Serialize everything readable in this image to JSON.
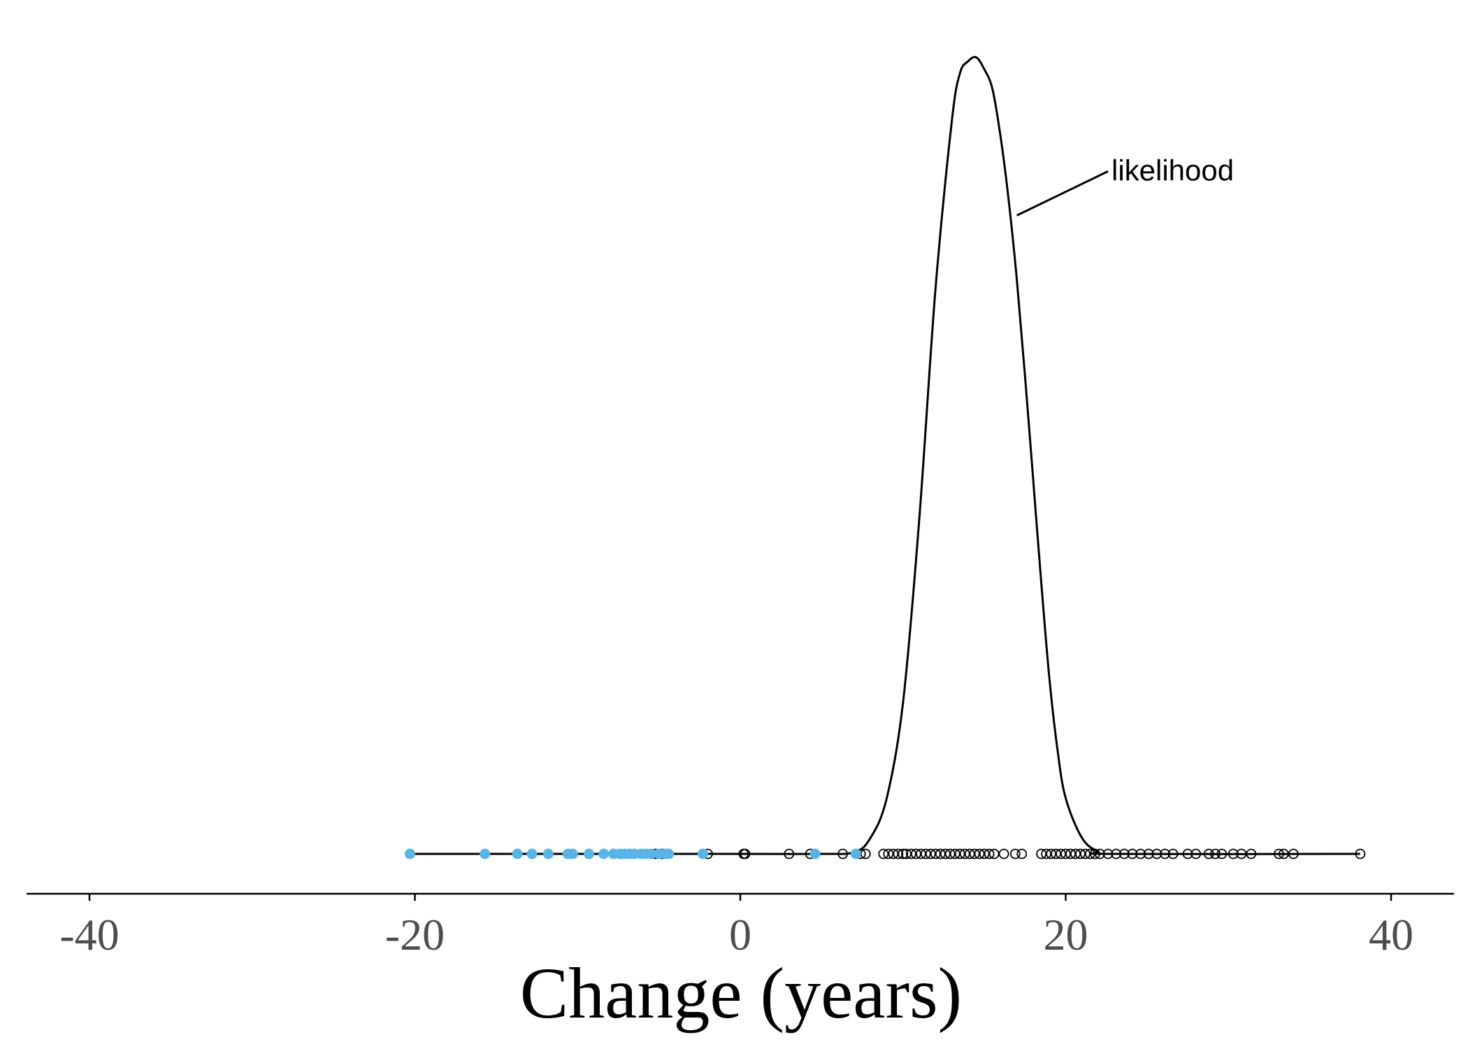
{
  "chart_data": {
    "type": "line",
    "title": "",
    "xlabel": "Change (years)",
    "ylabel": "",
    "xlim": [
      -44,
      44
    ],
    "x_ticks": [
      -40,
      -20,
      0,
      20,
      40
    ],
    "x_tick_labels": [
      "-40",
      "-20",
      "0",
      "20",
      "40"
    ],
    "y_ticks_shown": false,
    "grid": false,
    "legend": "none",
    "annotation": {
      "text": "likelihood",
      "points_to_x": 17
    },
    "colors": {
      "curve": "#000000",
      "filled_points": "#56b4e9",
      "open_points": "#000000",
      "axis": "#000000"
    },
    "series": [
      {
        "kind": "density_curve",
        "x": [
          -20.3,
          0,
          5,
          7,
          8,
          9,
          10,
          11,
          12,
          13,
          13.5,
          14,
          14.5,
          15,
          15.5,
          16,
          16.5,
          17,
          17.5,
          18,
          18.5,
          19,
          19.5,
          20,
          21,
          22,
          23,
          38.1
        ],
        "y": [
          0,
          0,
          0,
          0.002,
          0.02,
          0.07,
          0.19,
          0.42,
          0.71,
          0.92,
          0.98,
          0.995,
          1.0,
          0.985,
          0.96,
          0.9,
          0.82,
          0.72,
          0.6,
          0.47,
          0.34,
          0.22,
          0.13,
          0.07,
          0.02,
          0.003,
          0,
          0
        ]
      },
      {
        "kind": "points_filled",
        "x": [
          -20.3,
          -15.7,
          -13.7,
          -12.8,
          -11.8,
          -10.6,
          -10.3,
          -9.3,
          -8.4,
          -7.8,
          -7.4,
          -7.1,
          -6.8,
          -6.5,
          -6.1,
          -5.8,
          -5.5,
          -5.0,
          -4.6,
          -4.4,
          -2.3,
          4.6,
          7.1
        ]
      },
      {
        "kind": "points_open",
        "x": [
          -5.2,
          -4.8,
          -2.0,
          0.2,
          0.3,
          3.0,
          4.3,
          6.3,
          7.4,
          7.7,
          8.8,
          9.1,
          9.4,
          9.7,
          10.0,
          10.2,
          10.5,
          10.8,
          11.1,
          11.4,
          11.7,
          12.0,
          12.3,
          12.6,
          12.9,
          13.2,
          13.5,
          13.8,
          14.1,
          14.4,
          14.7,
          15.0,
          15.3,
          15.6,
          16.2,
          16.9,
          17.3,
          18.5,
          18.8,
          19.1,
          19.4,
          19.7,
          20.0,
          20.3,
          20.6,
          20.9,
          21.2,
          21.5,
          21.8,
          22.1,
          22.6,
          23.1,
          23.6,
          24.1,
          24.6,
          25.1,
          25.6,
          26.1,
          26.6,
          27.5,
          28.0,
          28.8,
          29.2,
          29.6,
          30.3,
          30.8,
          31.4,
          33.1,
          33.4,
          34.0,
          38.1
        ]
      }
    ]
  }
}
